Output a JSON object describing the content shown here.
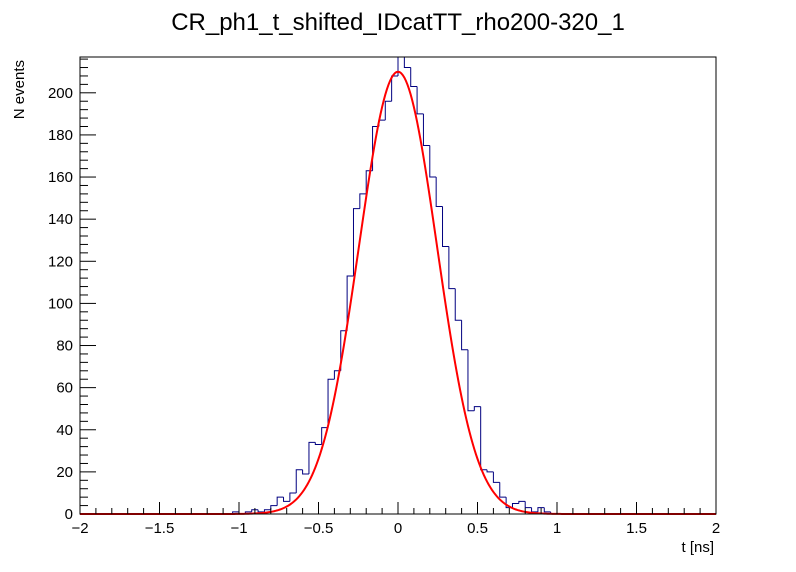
{
  "chart_data": {
    "type": "histogram",
    "title": "CR_ph1_t_shifted_IDcatTT_rho200-320_1",
    "xlabel": "t [ns]",
    "ylabel": "N events",
    "xlim": [
      -2,
      2
    ],
    "ylim": [
      0,
      217
    ],
    "x_ticks": [
      -2,
      -1.5,
      -1,
      -0.5,
      0,
      0.5,
      1,
      1.5,
      2
    ],
    "x_tick_labels": [
      "−2",
      "−1.5",
      "−1",
      "−0.5",
      "0",
      "0.5",
      "1",
      "1.5",
      "2"
    ],
    "y_ticks": [
      0,
      20,
      40,
      60,
      80,
      100,
      120,
      140,
      160,
      180,
      200
    ],
    "y_tick_labels": [
      "0",
      "20",
      "40",
      "60",
      "80",
      "100",
      "120",
      "140",
      "160",
      "180",
      "200"
    ],
    "grid": false,
    "legend": "none",
    "histogram": {
      "name": "",
      "color": "#000080",
      "bin_width": 0.04,
      "bin_low_edges": [
        -1.04,
        -1.0,
        -0.96,
        -0.92,
        -0.88,
        -0.84,
        -0.8,
        -0.76,
        -0.72,
        -0.68,
        -0.64,
        -0.6,
        -0.56,
        -0.52,
        -0.48,
        -0.44,
        -0.4,
        -0.36,
        -0.32,
        -0.28,
        -0.24,
        -0.2,
        -0.16,
        -0.12,
        -0.08,
        -0.04,
        0.0,
        0.04,
        0.08,
        0.12,
        0.16,
        0.2,
        0.24,
        0.28,
        0.32,
        0.36,
        0.4,
        0.44,
        0.48,
        0.52,
        0.56,
        0.6,
        0.64,
        0.68,
        0.72,
        0.76,
        0.8,
        0.84,
        0.88,
        0.92,
        0.96
      ],
      "counts": [
        1,
        0,
        1,
        2,
        1,
        2,
        4,
        8,
        6,
        10,
        21,
        19,
        34,
        33,
        41,
        64,
        68,
        87,
        113,
        145,
        152,
        163,
        184,
        187,
        196,
        208,
        217,
        212,
        203,
        190,
        175,
        160,
        146,
        127,
        107,
        92,
        78,
        49,
        51,
        21,
        20,
        15,
        8,
        3,
        5,
        6,
        3,
        1,
        3,
        1,
        0
      ]
    },
    "fit": {
      "name": "",
      "type": "gaus",
      "color": "#ff0000",
      "constant": 210,
      "mean": 0.0,
      "sigma": 0.245
    }
  }
}
